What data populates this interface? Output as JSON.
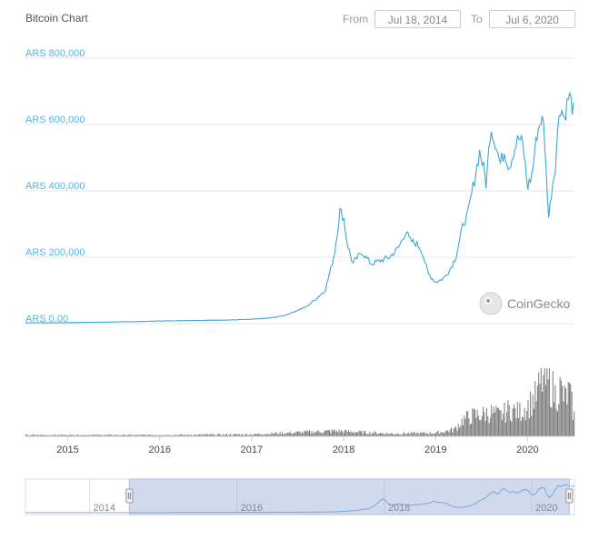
{
  "header": {
    "title": "Bitcoin Chart",
    "from_label": "From",
    "to_label": "To",
    "from_date": "Jul 18, 2014",
    "to_date": "Jul 6, 2020"
  },
  "watermark": {
    "text": "CoinGecko"
  },
  "colors": {
    "line": "#3da5d9",
    "volume": "#777777",
    "grid": "#e6e6e6",
    "navigator_mask": "rgba(102,133,194,0.3)"
  },
  "chart_data": {
    "type": "line",
    "title": "Bitcoin Chart",
    "ylabel": "",
    "xlabel": "",
    "currency": "ARS",
    "y_ticks": [
      "ARS 800,000",
      "ARS 600,000",
      "ARS 400,000",
      "ARS 200,000",
      "ARS 0.00"
    ],
    "y_tick_values": [
      800000,
      600000,
      400000,
      200000,
      0
    ],
    "ylim": [
      0,
      800000
    ],
    "x_ticks": [
      "2015",
      "2016",
      "2017",
      "2018",
      "2019",
      "2020"
    ],
    "x_tick_values": [
      2015.0,
      2016.0,
      2017.0,
      2018.0,
      2019.0,
      2020.0
    ],
    "xlim": [
      2014.54,
      2020.51
    ],
    "grid": true,
    "series": [
      {
        "x": [
          2014.54,
          2014.75,
          2015.0,
          2015.25,
          2015.5,
          2015.75,
          2016.0,
          2016.25,
          2016.5,
          2016.75,
          2017.0,
          2017.2,
          2017.35,
          2017.5,
          2017.6,
          2017.7,
          2017.8,
          2017.9,
          2017.96,
          2018.0,
          2018.04,
          2018.1,
          2018.15,
          2018.2,
          2018.3,
          2018.4,
          2018.5,
          2018.6,
          2018.68,
          2018.72,
          2018.8,
          2018.85,
          2018.92,
          2019.0,
          2019.08,
          2019.15,
          2019.22,
          2019.3,
          2019.35,
          2019.42,
          2019.48,
          2019.52,
          2019.55,
          2019.6,
          2019.63,
          2019.66,
          2019.7,
          2019.75,
          2019.8,
          2019.85,
          2019.9,
          2019.95,
          2020.0,
          2020.05,
          2020.1,
          2020.15,
          2020.18,
          2020.2,
          2020.23,
          2020.27,
          2020.3,
          2020.35,
          2020.4,
          2020.45,
          2020.5
        ],
        "values": [
          3000,
          2500,
          3000,
          4000,
          5000,
          6000,
          8000,
          9000,
          10000,
          11000,
          13000,
          17000,
          24000,
          40000,
          52000,
          75000,
          100000,
          210000,
          340000,
          320000,
          240000,
          180000,
          200000,
          215000,
          180000,
          190000,
          200000,
          230000,
          280000,
          250000,
          240000,
          220000,
          150000,
          125000,
          135000,
          160000,
          200000,
          300000,
          330000,
          430000,
          520000,
          470000,
          420000,
          600000,
          560000,
          540000,
          480000,
          520000,
          470000,
          520000,
          560000,
          540000,
          410000,
          450000,
          570000,
          620000,
          590000,
          470000,
          320000,
          420000,
          470000,
          660000,
          620000,
          690000,
          640000
        ]
      }
    ],
    "volume": {
      "x": [
        2014.54,
        2015.0,
        2016.0,
        2017.0,
        2017.9,
        2018.5,
        2019.0,
        2019.2,
        2019.3,
        2019.4,
        2019.5,
        2019.6,
        2019.7,
        2019.8,
        2019.9,
        2020.0,
        2020.1,
        2020.15,
        2020.2,
        2020.25,
        2020.3,
        2020.35,
        2020.4,
        2020.45,
        2020.5
      ],
      "values": [
        0.02,
        0.02,
        0.02,
        0.03,
        0.08,
        0.04,
        0.05,
        0.1,
        0.25,
        0.3,
        0.32,
        0.35,
        0.3,
        0.4,
        0.35,
        0.45,
        0.6,
        0.85,
        0.8,
        0.75,
        0.6,
        0.7,
        0.55,
        0.65,
        0.3
      ]
    },
    "navigator": {
      "ticks": [
        "2014",
        "2016",
        "2018",
        "2020"
      ],
      "tick_values": [
        2014.0,
        2016.0,
        2018.0,
        2020.0
      ],
      "xlim": [
        2013.13,
        2020.58
      ],
      "selected_range": [
        2014.54,
        2020.51
      ]
    }
  }
}
